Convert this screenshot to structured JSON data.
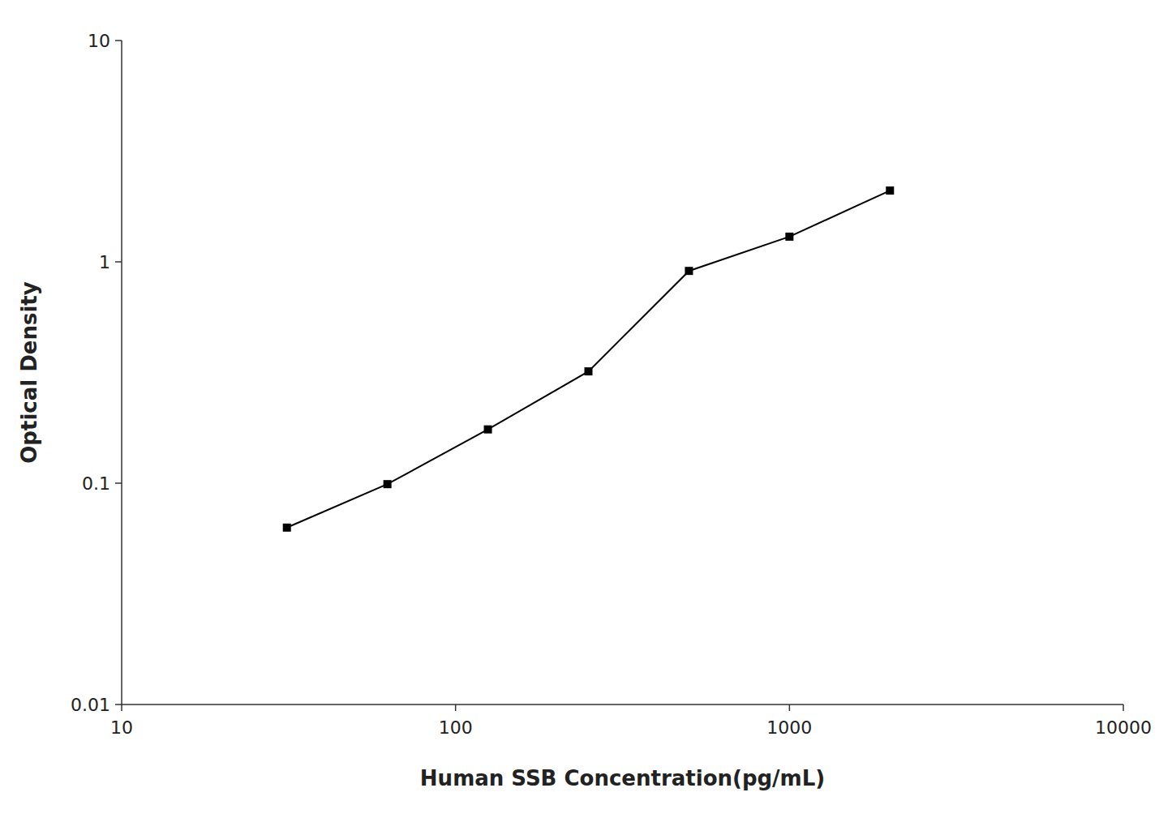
{
  "chart_data": {
    "type": "line",
    "xlabel": "Human SSB Concentration(pg/mL)",
    "ylabel": "Optical Density",
    "x": [
      31.25,
      62.5,
      125,
      250,
      500,
      1000,
      2000
    ],
    "values": [
      0.063,
      0.099,
      0.175,
      0.32,
      0.91,
      1.3,
      2.1
    ],
    "color": "#000000",
    "marker": "square",
    "log": true,
    "grid": false,
    "xlim": [
      10,
      10000
    ],
    "ylim": [
      0.01,
      10
    ],
    "xticks": [
      10,
      100,
      1000,
      10000
    ],
    "yticks": [
      0.01,
      0.1,
      1,
      10
    ]
  }
}
